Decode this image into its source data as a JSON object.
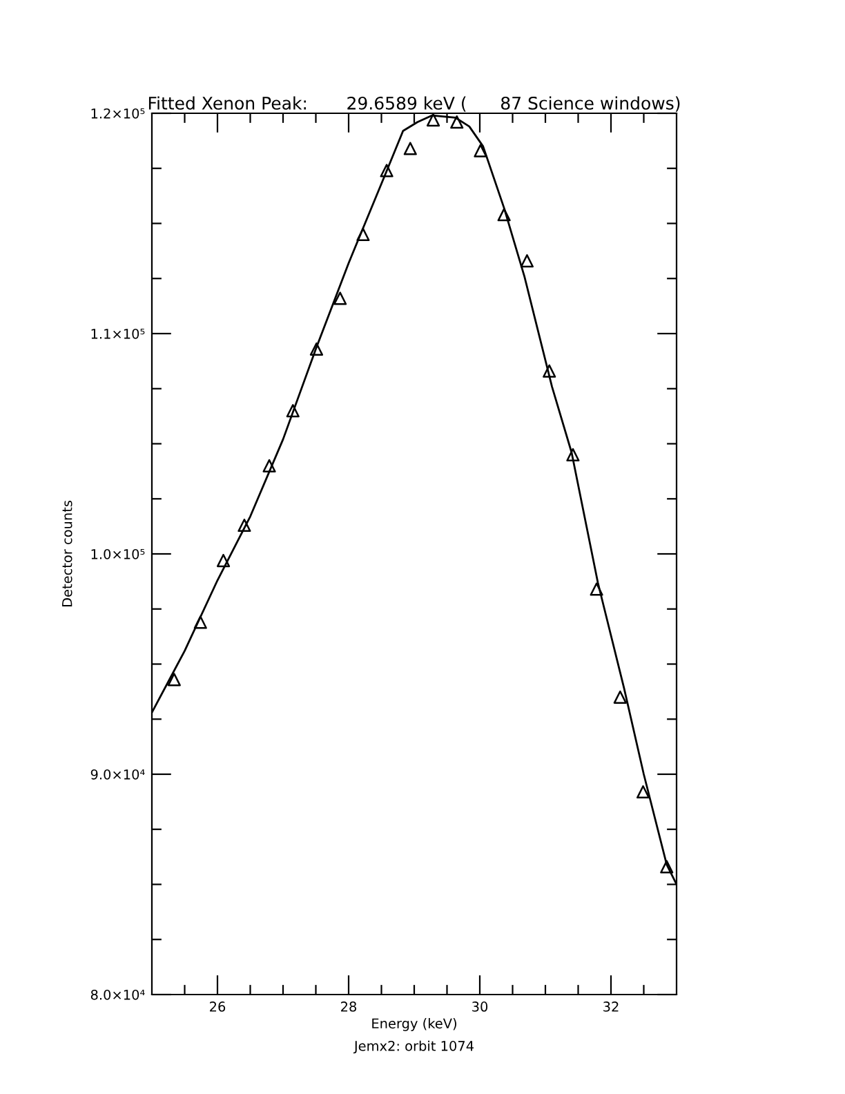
{
  "chart_data": {
    "type": "scatter",
    "title": "Fitted Xenon Peak:       29.6589 keV (      87 Science windows)",
    "xlabel": "Energy (keV)",
    "ylabel": "Detector counts",
    "annotations": [
      "Jemx2: orbit 1074"
    ],
    "series": [
      {
        "marker": "triangle",
        "color": "#000000",
        "x": [
          25.34,
          25.74,
          26.09,
          26.41,
          26.79,
          27.15,
          27.51,
          27.87,
          28.22,
          28.58,
          28.94,
          29.29,
          29.65,
          30.01,
          30.37,
          30.72,
          31.06,
          31.42,
          31.78,
          32.14,
          32.49,
          32.85
        ],
        "values": [
          94300,
          96900,
          99700,
          101300,
          104000,
          106500,
          109300,
          111600,
          114500,
          117400,
          118400,
          119700,
          119600,
          118300,
          115400,
          113300,
          108300,
          104500,
          98400,
          93500,
          89200,
          85800
        ]
      },
      {
        "type": "line",
        "marker": "none",
        "line_style": "solid",
        "color": "#000000",
        "x": [
          25.0,
          25.5,
          26.0,
          26.5,
          27.0,
          27.5,
          28.0,
          28.5,
          28.83,
          29.05,
          29.27,
          29.63,
          29.84,
          30.05,
          30.37,
          30.68,
          31.1,
          31.4,
          31.8,
          32.2,
          32.5,
          32.85,
          33.0
        ],
        "values": [
          92800,
          95600,
          98800,
          101700,
          105200,
          109300,
          113200,
          116800,
          119200,
          119600,
          119900,
          119800,
          119400,
          118500,
          115700,
          112600,
          107600,
          104600,
          98700,
          93900,
          90000,
          85900,
          85000
        ]
      }
    ],
    "xlim": [
      25,
      33
    ],
    "ylim": [
      80000,
      120000
    ],
    "xticks": [
      {
        "value": 25.5,
        "label": null
      },
      26,
      {
        "value": 26.5,
        "label": null
      },
      {
        "value": 27,
        "label": null
      },
      {
        "value": 27.5,
        "label": null
      },
      28,
      {
        "value": 28.5,
        "label": null
      },
      {
        "value": 29,
        "label": null
      },
      {
        "value": 29.5,
        "label": null
      },
      30,
      {
        "value": 30.5,
        "label": null
      },
      {
        "value": 31,
        "label": null
      },
      {
        "value": 31.5,
        "label": null
      },
      32,
      {
        "value": 32.5,
        "label": null
      }
    ],
    "yticks": [
      {
        "value": 80000,
        "label": "8.0×10⁴"
      },
      {
        "value": 82500,
        "label": null
      },
      {
        "value": 85000,
        "label": null
      },
      {
        "value": 87500,
        "label": null
      },
      {
        "value": 90000,
        "label": "9.0×10⁴"
      },
      {
        "value": 92500,
        "label": null
      },
      {
        "value": 95000,
        "label": null
      },
      {
        "value": 97500,
        "label": null
      },
      {
        "value": 100000,
        "label": "1.0×10⁵"
      },
      {
        "value": 102500,
        "label": null
      },
      {
        "value": 105000,
        "label": null
      },
      {
        "value": 107500,
        "label": null
      },
      {
        "value": 110000,
        "label": "1.1×10⁵"
      },
      {
        "value": 112500,
        "label": null
      },
      {
        "value": 115000,
        "label": null
      },
      {
        "value": 117500,
        "label": null
      },
      {
        "value": 120000,
        "label": "1.2×10⁵"
      }
    ],
    "grid": false,
    "legend": false
  }
}
